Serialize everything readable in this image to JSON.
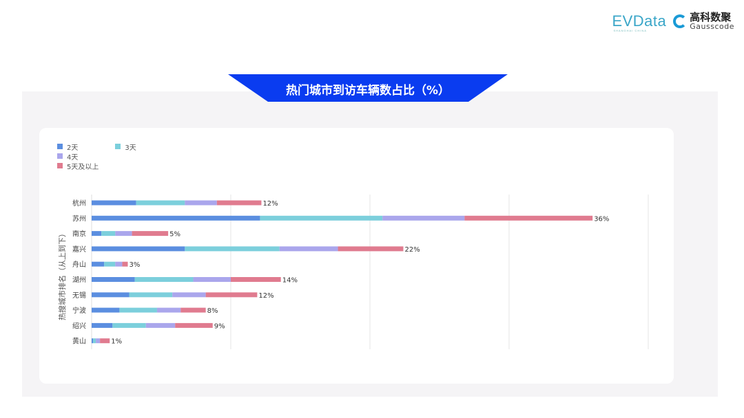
{
  "logos": {
    "evdata": "EVData",
    "evdata_sub": "SHANGHAI CHINA",
    "gauss_cn": "高科数聚",
    "gauss_en": "Gausscode"
  },
  "banner_title": "热门城市到访车辆数占比（%）",
  "colors": {
    "banner": "#0a3cf0",
    "2天": "#5b8ee0",
    "3天": "#7ccfdc",
    "4天": "#aaa6ec",
    "5天及以上": "#e07b8f"
  },
  "chart_data": {
    "type": "bar",
    "orientation": "horizontal",
    "stacked": true,
    "ylabel": "热搜城市排名（从上到下）",
    "xlim": [
      0,
      40
    ],
    "grid": true,
    "legend": "top-left",
    "categories": [
      "杭州",
      "苏州",
      "南京",
      "嘉兴",
      "舟山",
      "湖州",
      "无锡",
      "宁波",
      "绍兴",
      "黄山"
    ],
    "totals_labels": [
      "12%",
      "36%",
      "5%",
      "22%",
      "3%",
      "14%",
      "12%",
      "8%",
      "9%",
      "1%"
    ],
    "series": [
      {
        "name": "2天",
        "values": [
          3.2,
          12.1,
          0.7,
          6.7,
          0.9,
          3.1,
          2.7,
          2.0,
          1.5,
          0.1
        ]
      },
      {
        "name": "3天",
        "values": [
          3.5,
          8.8,
          1.0,
          6.8,
          0.8,
          4.2,
          3.1,
          2.7,
          2.4,
          0.2
        ]
      },
      {
        "name": "4天",
        "values": [
          2.3,
          5.9,
          1.2,
          4.2,
          0.5,
          2.7,
          2.4,
          1.7,
          2.1,
          0.3
        ]
      },
      {
        "name": "5天及以上",
        "values": [
          3.2,
          9.2,
          2.6,
          4.7,
          0.4,
          3.6,
          3.7,
          1.8,
          2.7,
          0.7
        ]
      }
    ]
  }
}
